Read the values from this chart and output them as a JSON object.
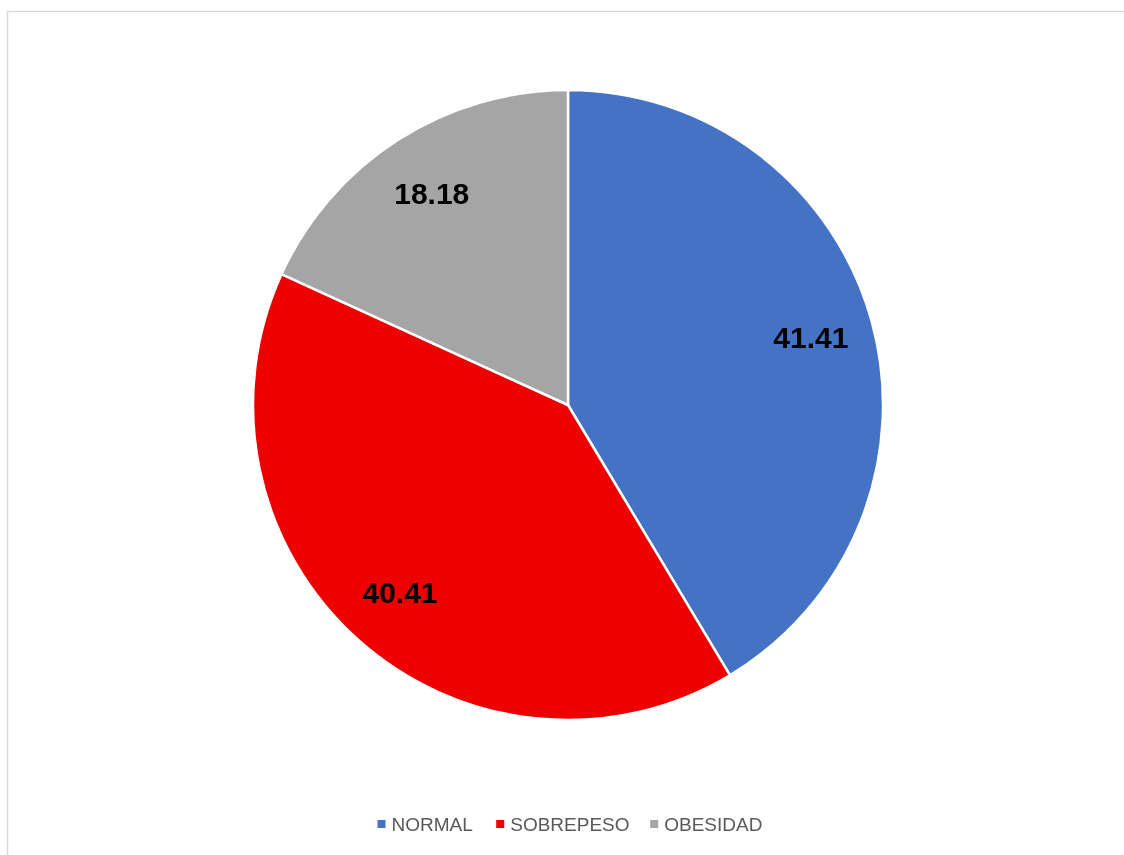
{
  "chart_data": {
    "type": "pie",
    "categories": [
      "NORMAL",
      "SOBREPESO",
      "OBESIDAD"
    ],
    "values": [
      41.41,
      40.41,
      18.18
    ],
    "colors": [
      "#4472c4",
      "#ee0000",
      "#a5a5a5"
    ],
    "data_labels": true,
    "legend": "bottom"
  }
}
